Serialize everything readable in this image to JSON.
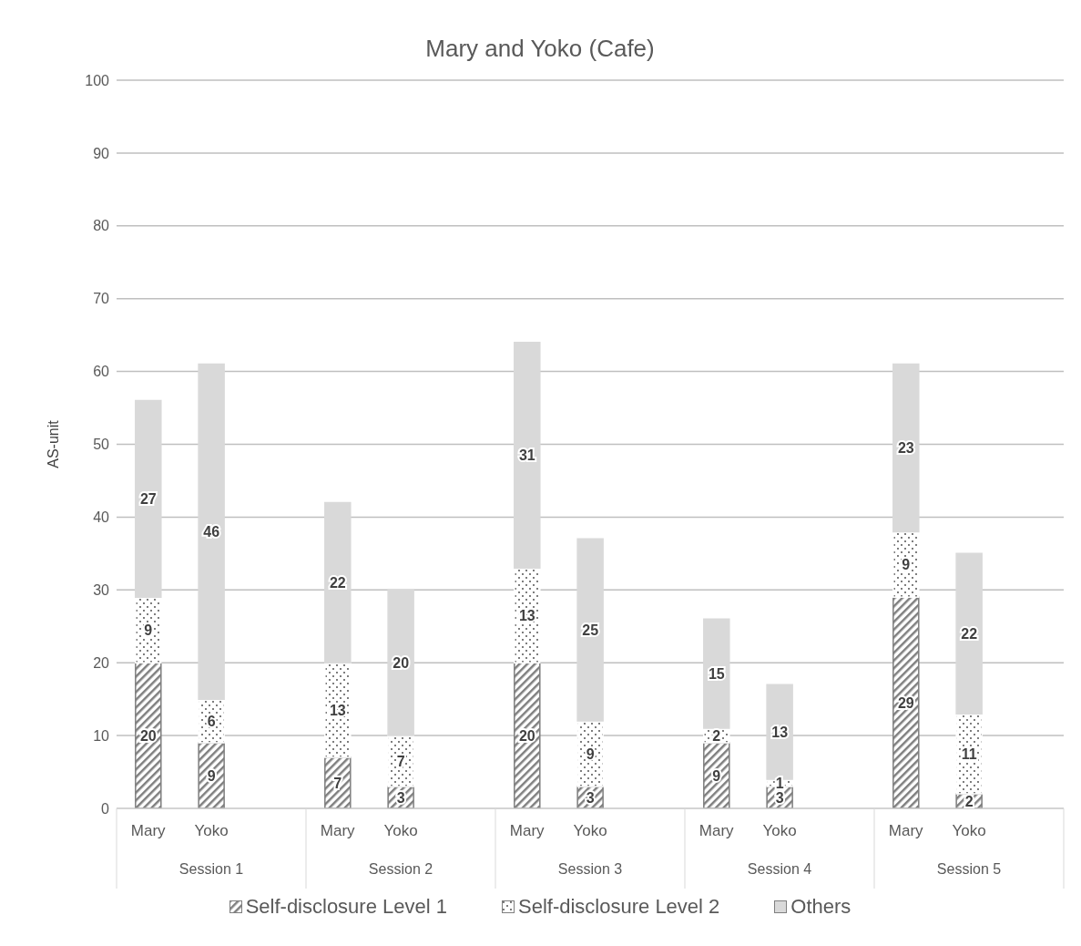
{
  "chart_data": {
    "type": "bar",
    "title": "Mary and Yoko (Cafe)",
    "ylabel": "AS-unit",
    "stacked": true,
    "data_labels": true,
    "grid": "y",
    "legend": "bottom",
    "categories": [
      "Mary",
      "Yoko",
      null,
      "Mary",
      "Yoko",
      null,
      "Mary",
      "Yoko",
      null,
      "Mary",
      "Yoko",
      null,
      "Mary",
      "Yoko",
      null
    ],
    "annotations": [
      "Session 1",
      "Session 2",
      "Session 3",
      "Session 4",
      "Session 5"
    ],
    "ylim": [
      0,
      100
    ],
    "yticks": [
      0,
      10,
      20,
      30,
      40,
      50,
      60,
      70,
      80,
      90,
      100
    ],
    "series": [
      {
        "name": "Self-disclosure Level 1",
        "color": "#7f7f7f",
        "values": [
          20,
          9,
          null,
          7,
          3,
          null,
          20,
          3,
          null,
          9,
          3,
          null,
          29,
          2,
          null
        ]
      },
      {
        "name": "Self-disclosure Level 2",
        "color": "#ffffff",
        "values": [
          9,
          6,
          null,
          13,
          7,
          null,
          13,
          9,
          null,
          2,
          1,
          null,
          9,
          11,
          null
        ]
      },
      {
        "name": "Others",
        "color": "#d9d9d9",
        "values": [
          27,
          46,
          null,
          22,
          20,
          null,
          31,
          25,
          null,
          15,
          13,
          null,
          23,
          22,
          null
        ]
      }
    ]
  }
}
